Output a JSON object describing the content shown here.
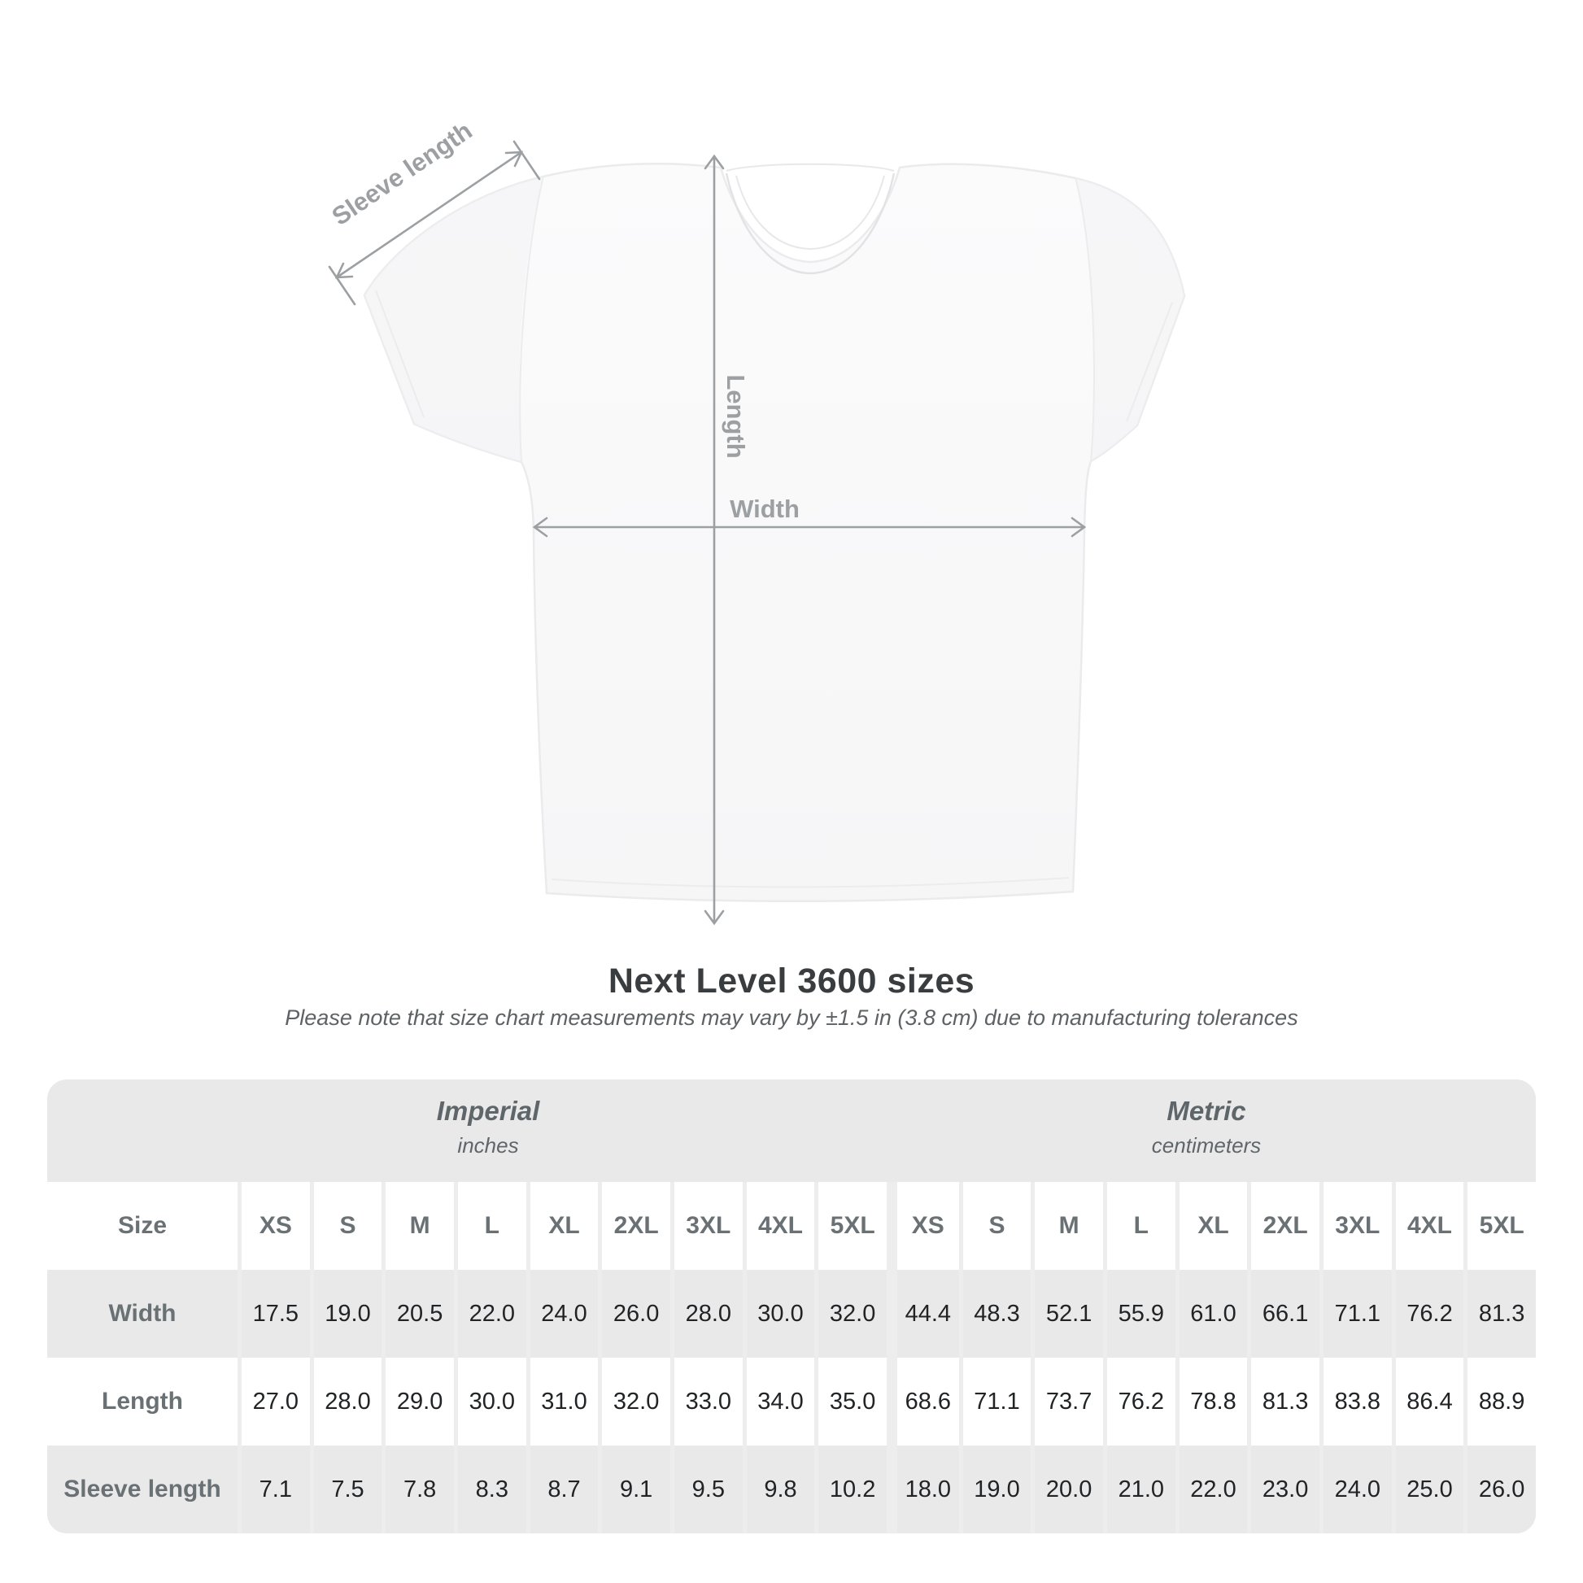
{
  "page": {
    "title": "Next Level 3600 sizes",
    "subtitle": "Please note that size chart measurements may vary by ±1.5 in (3.8 cm) due to manufacturing tolerances"
  },
  "diagram": {
    "sleeve_label": "Sleeve length",
    "length_label": "Length",
    "width_label": "Width"
  },
  "size_chart": {
    "corner_label": "Size",
    "sections": [
      {
        "name": "Imperial",
        "unit": "inches",
        "sizes": [
          "XS",
          "S",
          "M",
          "L",
          "XL",
          "2XL",
          "3XL",
          "4XL",
          "5XL"
        ]
      },
      {
        "name": "Metric",
        "unit": "centimeters",
        "sizes": [
          "XS",
          "S",
          "M",
          "L",
          "XL",
          "2XL",
          "3XL",
          "4XL",
          "5XL"
        ]
      }
    ],
    "rows": [
      {
        "label": "Width",
        "imperial": [
          "17.5",
          "19.0",
          "20.5",
          "22.0",
          "24.0",
          "26.0",
          "28.0",
          "30.0",
          "32.0"
        ],
        "metric": [
          "44.4",
          "48.3",
          "52.1",
          "55.9",
          "61.0",
          "66.1",
          "71.1",
          "76.2",
          "81.3"
        ]
      },
      {
        "label": "Length",
        "imperial": [
          "27.0",
          "28.0",
          "29.0",
          "30.0",
          "31.0",
          "32.0",
          "33.0",
          "34.0",
          "35.0"
        ],
        "metric": [
          "68.6",
          "71.1",
          "73.7",
          "76.2",
          "78.8",
          "81.3",
          "83.8",
          "86.4",
          "88.9"
        ]
      },
      {
        "label": "Sleeve length",
        "imperial": [
          "7.1",
          "7.5",
          "7.8",
          "8.3",
          "8.7",
          "9.1",
          "9.5",
          "9.8",
          "10.2"
        ],
        "metric": [
          "18.0",
          "19.0",
          "20.0",
          "21.0",
          "22.0",
          "23.0",
          "24.0",
          "25.0",
          "26.0"
        ]
      }
    ]
  },
  "colors": {
    "measure_gray": "#9ca0a3",
    "table_bg": "#e9e9ea",
    "separator": "#ededee",
    "header_text": "#6a7175",
    "value_text": "#212325"
  }
}
